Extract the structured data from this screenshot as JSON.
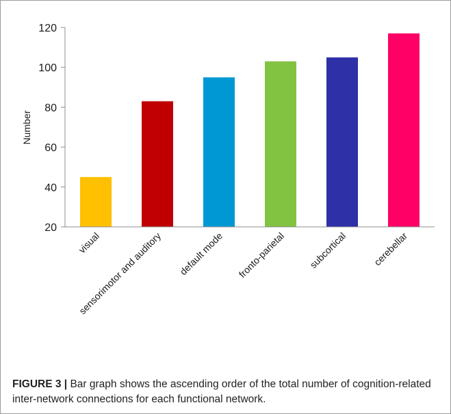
{
  "chart_data": {
    "type": "bar",
    "categories": [
      "visual",
      "sensorimotor and auditory",
      "default mode",
      "fronto-parietal",
      "subcortical",
      "cerebellar"
    ],
    "values": [
      45,
      83,
      95,
      103,
      105,
      117
    ],
    "colors": [
      "#ffc000",
      "#c00000",
      "#0098d4",
      "#82c341",
      "#2e30a8",
      "#ff0066"
    ],
    "ylabel": "Number",
    "ylim": [
      20,
      120
    ],
    "yticks": [
      20,
      40,
      60,
      80,
      100,
      120
    ],
    "grid": false,
    "legend": "none"
  },
  "caption": {
    "label": "FIGURE 3 |",
    "text": "Bar graph shows the ascending order of the total number of cognition-related inter-network connections for each functional network."
  }
}
